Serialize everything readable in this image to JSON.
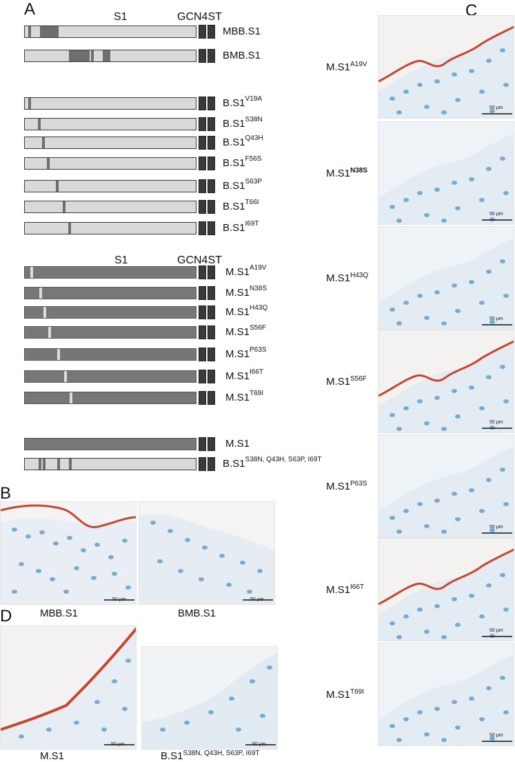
{
  "panels": {
    "A": "A",
    "B": "B",
    "C": "C",
    "D": "D"
  },
  "schematic": {
    "header1": {
      "s1": "S1",
      "gcn4st": "GCN4ST"
    },
    "header2": {
      "s1": "S1",
      "gcn4st": "GCN4ST"
    },
    "rows": [
      {
        "base": "MBB.S1",
        "sup": ""
      },
      {
        "base": "BMB.S1",
        "sup": ""
      },
      {
        "base": "B.S1",
        "sup": "V19A"
      },
      {
        "base": "B.S1",
        "sup": "S38N"
      },
      {
        "base": "B.S1",
        "sup": "Q43H"
      },
      {
        "base": "B.S1",
        "sup": "F56S"
      },
      {
        "base": "B.S1",
        "sup": "S63P"
      },
      {
        "base": "B.S1",
        "sup": "T66I"
      },
      {
        "base": "B.S1",
        "sup": "I69T"
      },
      {
        "base": "M.S1",
        "sup": "A19V"
      },
      {
        "base": "M.S1",
        "sup": "N38S"
      },
      {
        "base": "M.S1",
        "sup": "H43Q"
      },
      {
        "base": "M.S1",
        "sup": "S56F"
      },
      {
        "base": "M.S1",
        "sup": "P63S"
      },
      {
        "base": "M.S1",
        "sup": "I66T"
      },
      {
        "base": "M.S1",
        "sup": "T69I"
      },
      {
        "base": "M.S1",
        "sup": ""
      },
      {
        "base": "B.S1",
        "sup": "S38N, Q43H, S63P, I69T"
      }
    ]
  },
  "panelB": {
    "captions": [
      "MBB.S1",
      "BMB.S1"
    ],
    "scale": "50 µm"
  },
  "panelC": {
    "labels": [
      {
        "base": "M.S1",
        "sup": "A19V"
      },
      {
        "base": "M.S1",
        "sup": "N38S"
      },
      {
        "base": "M.S1",
        "sup": "H43Q"
      },
      {
        "base": "M.S1",
        "sup": "S56F"
      },
      {
        "base": "M.S1",
        "sup": "P63S"
      },
      {
        "base": "M.S1",
        "sup": "I66T"
      },
      {
        "base": "M.S1",
        "sup": "T69I"
      }
    ],
    "scale": "50 µm"
  },
  "panelD": {
    "captions": [
      {
        "base": "M.S1",
        "sup": ""
      },
      {
        "base": "B.S1",
        "sup": "S38N, Q43H, S63P, I69T"
      }
    ],
    "scale": "50 µm"
  },
  "colors": {
    "stain": "#c8472c",
    "nucleus": "#5b9cc9",
    "tissue": "#e6eef4",
    "bar_light": "#d9d9d9",
    "bar_dark": "#777777"
  }
}
